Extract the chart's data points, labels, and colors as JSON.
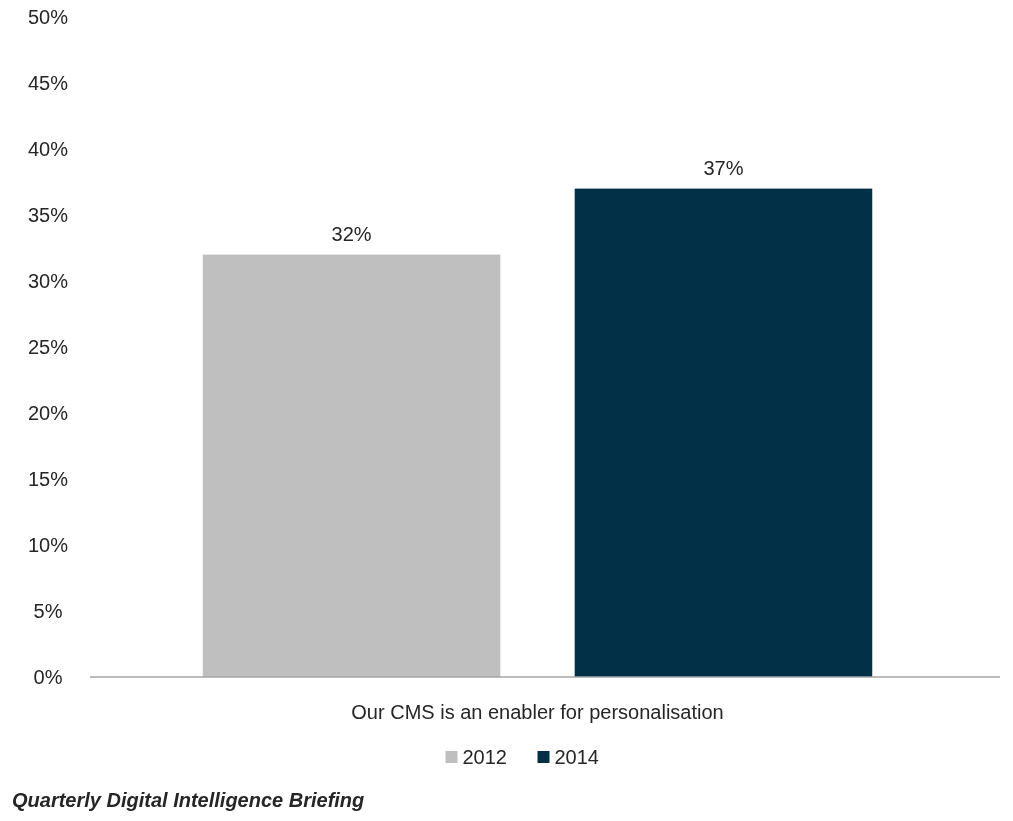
{
  "chart_data": {
    "type": "bar",
    "categories": [
      "Our CMS is an enabler for personalisation"
    ],
    "series": [
      {
        "name": "2012",
        "color": "#bfbfbf",
        "values": [
          32
        ],
        "value_labels": [
          "32%"
        ]
      },
      {
        "name": "2014",
        "color": "#023047",
        "values": [
          37
        ],
        "value_labels": [
          "37%"
        ]
      }
    ],
    "ylim": [
      0,
      50
    ],
    "yticks": [
      {
        "value": 0,
        "label": "0%"
      },
      {
        "value": 5,
        "label": "5%"
      },
      {
        "value": 10,
        "label": "10%"
      },
      {
        "value": 15,
        "label": "15%"
      },
      {
        "value": 20,
        "label": "20%"
      },
      {
        "value": 25,
        "label": "25%"
      },
      {
        "value": 30,
        "label": "30%"
      },
      {
        "value": 35,
        "label": "35%"
      },
      {
        "value": 40,
        "label": "40%"
      },
      {
        "value": 45,
        "label": "45%"
      },
      {
        "value": 50,
        "label": "50%"
      }
    ],
    "grid": false,
    "legend": "bottom",
    "annotations": [
      "Quarterly Digital Intelligence Briefing"
    ]
  }
}
